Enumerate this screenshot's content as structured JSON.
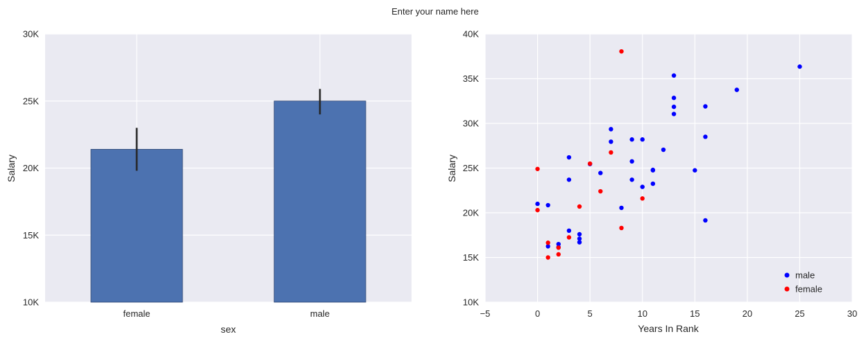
{
  "figure": {
    "suptitle": "Enter your name here"
  },
  "chart_data": [
    {
      "type": "bar",
      "xlabel": "sex",
      "ylabel": "Salary",
      "categories": [
        "female",
        "male"
      ],
      "values": [
        21400,
        25000
      ],
      "error_bars": [
        [
          19800,
          23000
        ],
        [
          24000,
          25900
        ]
      ],
      "ylim": [
        10000,
        30000
      ],
      "yticks": [
        10000,
        15000,
        20000,
        25000,
        30000
      ],
      "ytick_labels": [
        "10K",
        "15K",
        "20K",
        "25K",
        "30K"
      ],
      "bar_color": "#4C72B0",
      "error_color": "#262626",
      "grid": true,
      "background": "#EAEAF2"
    },
    {
      "type": "scatter",
      "xlabel": "Years In Rank",
      "ylabel": "Salary",
      "xlim": [
        -5,
        30
      ],
      "ylim": [
        10000,
        40000
      ],
      "xticks": [
        -5,
        0,
        5,
        10,
        15,
        20,
        25,
        30
      ],
      "xtick_labels": [
        "−5",
        "0",
        "5",
        "10",
        "15",
        "20",
        "25",
        "30"
      ],
      "yticks": [
        10000,
        15000,
        20000,
        25000,
        30000,
        35000,
        40000
      ],
      "ytick_labels": [
        "10K",
        "15K",
        "20K",
        "25K",
        "30K",
        "35K",
        "40K"
      ],
      "grid": true,
      "background": "#EAEAF2",
      "legend_position": "lower-right",
      "series": [
        {
          "name": "male",
          "color": "#0000FF",
          "points": [
            [
              25,
              36350
            ],
            [
              13,
              35350
            ],
            [
              19,
              33750
            ],
            [
              13,
              32850
            ],
            [
              13,
              31850
            ],
            [
              16,
              31900
            ],
            [
              13,
              31050
            ],
            [
              7,
              29350
            ],
            [
              16,
              28500
            ],
            [
              9,
              28200
            ],
            [
              10,
              28200
            ],
            [
              7,
              27950
            ],
            [
              12,
              27050
            ],
            [
              3,
              26200
            ],
            [
              9,
              25750
            ],
            [
              5,
              25450
            ],
            [
              11,
              24800
            ],
            [
              11,
              24750
            ],
            [
              15,
              24750
            ],
            [
              6,
              24450
            ],
            [
              3,
              23700
            ],
            [
              9,
              23700
            ],
            [
              11,
              23250
            ],
            [
              10,
              22900
            ],
            [
              0,
              21000
            ],
            [
              1,
              20850
            ],
            [
              8,
              20550
            ],
            [
              16,
              19150
            ],
            [
              3,
              18000
            ],
            [
              4,
              17600
            ],
            [
              4,
              17100
            ],
            [
              4,
              16700
            ],
            [
              2,
              16500
            ],
            [
              1,
              16250
            ],
            [
              2,
              16150
            ]
          ]
        },
        {
          "name": "female",
          "color": "#FF0000",
          "points": [
            [
              8,
              38050
            ],
            [
              7,
              26750
            ],
            [
              5,
              25500
            ],
            [
              0,
              24900
            ],
            [
              6,
              22400
            ],
            [
              10,
              21600
            ],
            [
              4,
              20700
            ],
            [
              0,
              20300
            ],
            [
              8,
              18300
            ],
            [
              3,
              17250
            ],
            [
              1,
              16650
            ],
            [
              2,
              16100
            ],
            [
              2,
              15350
            ],
            [
              1,
              15000
            ]
          ]
        }
      ]
    }
  ]
}
